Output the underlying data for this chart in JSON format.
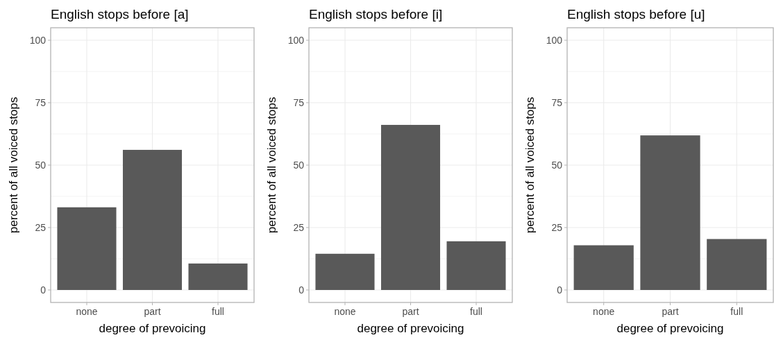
{
  "chart_data": [
    {
      "type": "bar",
      "title": "English stops before [a]",
      "xlabel": "degree of prevoicing",
      "ylabel": "percent of all voiced stops",
      "categories": [
        "none",
        "part",
        "full"
      ],
      "values": [
        33.1,
        56.1,
        10.6
      ],
      "color": "#595959",
      "ylim": [
        -5,
        105
      ],
      "yticks": [
        0,
        25,
        50,
        75,
        100
      ],
      "grid": true
    },
    {
      "type": "bar",
      "title": "English stops before [i]",
      "xlabel": "degree of prevoicing",
      "ylabel": "percent of all voiced stops",
      "categories": [
        "none",
        "part",
        "full"
      ],
      "values": [
        14.5,
        66.1,
        19.5
      ],
      "color": "#595959",
      "ylim": [
        -5,
        105
      ],
      "yticks": [
        0,
        25,
        50,
        75,
        100
      ],
      "grid": true
    },
    {
      "type": "bar",
      "title": "English stops before [u]",
      "xlabel": "degree of prevoicing",
      "ylabel": "percent of all voiced stops",
      "categories": [
        "none",
        "part",
        "full"
      ],
      "values": [
        17.9,
        61.9,
        20.4
      ],
      "color": "#595959",
      "ylim": [
        -5,
        105
      ],
      "yticks": [
        0,
        25,
        50,
        75,
        100
      ],
      "grid": true
    }
  ]
}
